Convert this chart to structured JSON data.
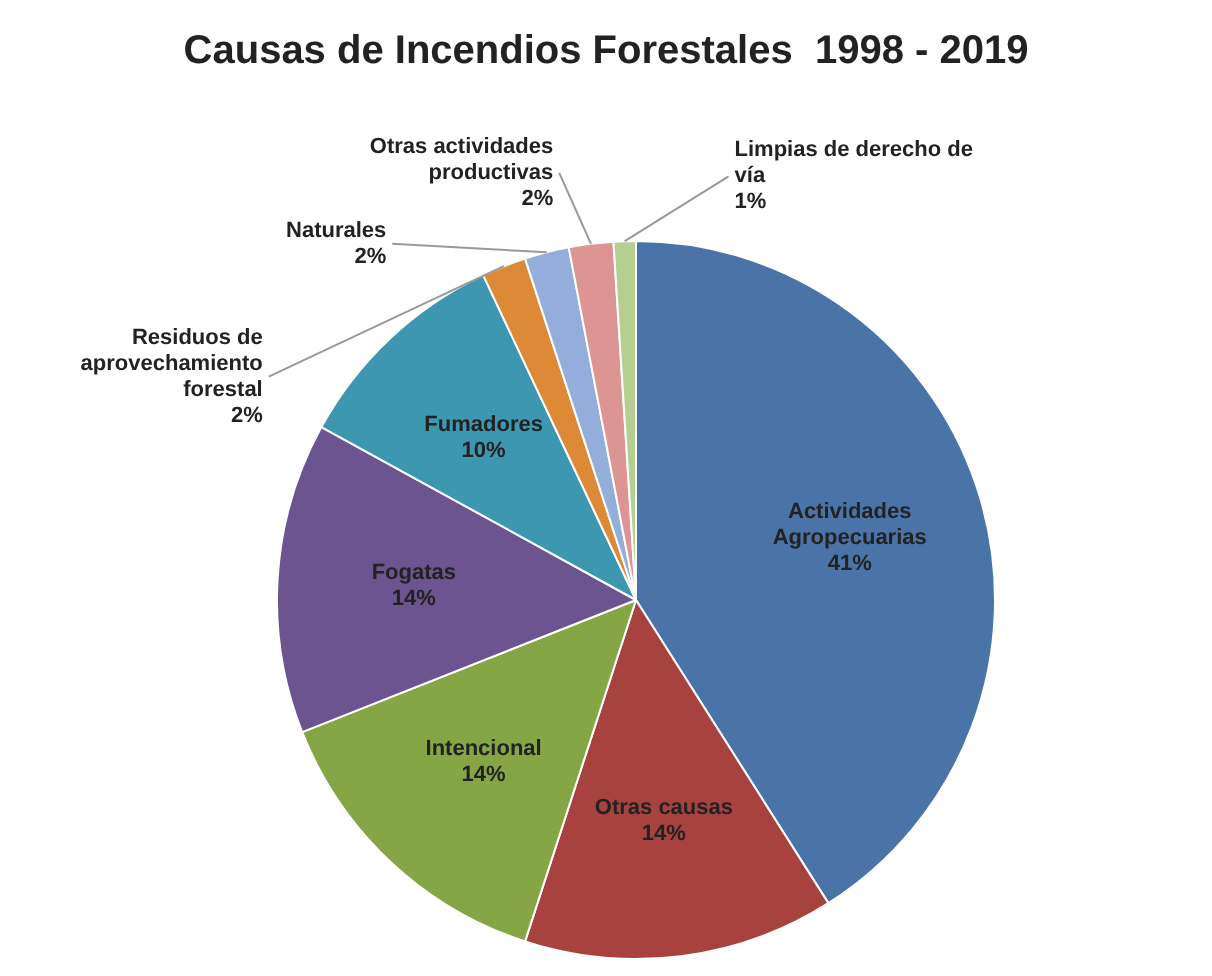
{
  "chart_data": {
    "type": "pie",
    "title": "Causas de Incendios Forestales  1998 - 2019",
    "categories": [
      "Actividades Agropecuarias",
      "Otras causas",
      "Intencional",
      "Fogatas",
      "Fumadores",
      "Residuos de aprovechamiento forestal",
      "Naturales",
      "Otras actividades productivas",
      "Limpias de derecho de vía"
    ],
    "values": [
      41,
      14,
      14,
      14,
      10,
      2,
      2,
      2,
      1
    ],
    "value_labels": [
      "41%",
      "14%",
      "14%",
      "14%",
      "10%",
      "2%",
      "2%",
      "2%",
      "1%"
    ],
    "colors": [
      "#4a74a8",
      "#a8423f",
      "#86a545",
      "#6b5490",
      "#3e97b0",
      "#dc8a35",
      "#94aedb",
      "#dc9593",
      "#b5cf91"
    ],
    "legend": false
  }
}
